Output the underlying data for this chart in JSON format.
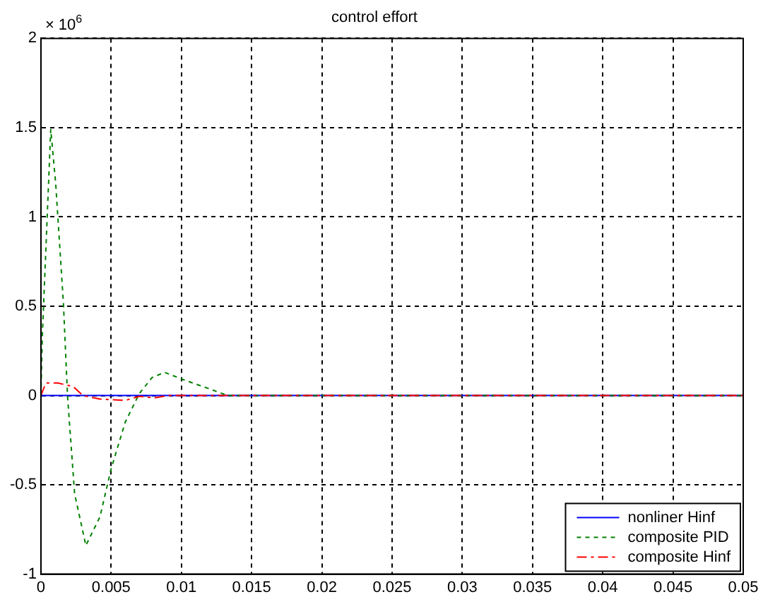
{
  "chart_data": {
    "type": "line",
    "title": "control effort",
    "annotations": [
      "× 10$^{6}$"
    ],
    "xlim": [
      0,
      0.05
    ],
    "xticks": [
      0,
      0.005,
      0.01,
      0.015,
      0.02,
      0.025,
      0.03,
      0.035,
      0.04,
      0.045,
      0.05
    ],
    "ylim": [
      -1,
      2
    ],
    "yticks": [
      -1,
      -0.5,
      0,
      0.5,
      1,
      1.5,
      2
    ],
    "grid": true,
    "legend": "bottom right",
    "marker": "none",
    "series": [
      {
        "name": "nonliner Hinf",
        "color": "#0000ff",
        "line_style": "solid",
        "x": [
          0,
          0.05
        ],
        "values": [
          0,
          0
        ]
      },
      {
        "name": "composite PID",
        "color": "#008000",
        "line_style": "dotted",
        "x": [
          0,
          0.0001,
          0.0007,
          0.00105,
          0.0016,
          0.0019,
          0.0024,
          0.0032,
          0.0042,
          0.005,
          0.006,
          0.007,
          0.0079,
          0.0088,
          0.0101,
          0.0119,
          0.0133,
          0.05
        ],
        "values": [
          0,
          0.33,
          1.49,
          1.19,
          0.52,
          -0.01,
          -0.55,
          -0.84,
          -0.68,
          -0.41,
          -0.15,
          0.01,
          0.1,
          0.13,
          0.09,
          0.04,
          0,
          0
        ]
      },
      {
        "name": "composite Hinf",
        "color": "#ff0000",
        "line_style": "dashed",
        "x": [
          0,
          0.00035,
          0.0012,
          0.0023,
          0.003,
          0.0042,
          0.006,
          0.007,
          0.0081,
          0.0091,
          0.05
        ],
        "values": [
          0,
          0.07,
          0.07,
          0.05,
          0,
          -0.02,
          -0.027,
          -0.005,
          -0.013,
          0,
          0
        ]
      }
    ]
  }
}
